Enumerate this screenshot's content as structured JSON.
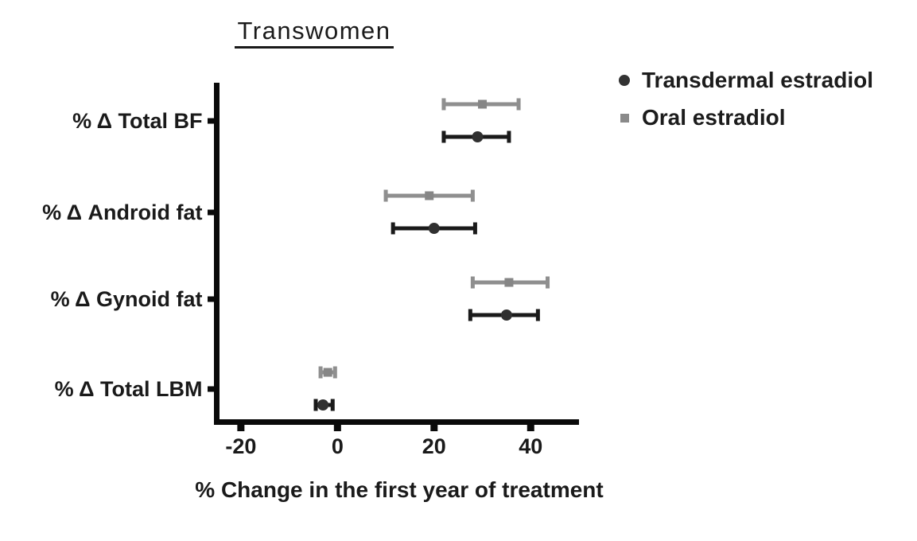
{
  "figure": {
    "title": "Transwomen",
    "background_color": "#ffffff",
    "text_color": "#1a1a1a"
  },
  "legend": {
    "items": [
      {
        "label": "Transdermal estradiol",
        "marker": "circle",
        "color": "#333333"
      },
      {
        "label": "Oral estradiol",
        "marker": "square",
        "color": "#8a8a8a"
      }
    ]
  },
  "chart_data": {
    "type": "scatter",
    "subtype": "horizontal point estimates with error bars (forest-style)",
    "title": "Transwomen",
    "xlabel": "% Change in the first year of treatment",
    "xlim": [
      -25,
      50
    ],
    "xticks": [
      -20,
      0,
      20,
      40
    ],
    "grid": false,
    "legend_position": "top-right",
    "axis_color": "#0a0a0a",
    "categories": [
      "% Δ Total BF",
      "% Δ Android fat",
      "% Δ Gynoid fat",
      "% Δ Total LBM"
    ],
    "series": [
      {
        "name": "Oral estradiol",
        "marker": "square",
        "marker_color": "#868686",
        "line_color": "#8f8f8f",
        "values": [
          30,
          19,
          35.5,
          -2
        ],
        "ci_low": [
          22,
          10,
          28,
          -3.5
        ],
        "ci_high": [
          37.5,
          28,
          43.5,
          -0.5
        ]
      },
      {
        "name": "Transdermal estradiol",
        "marker": "circle",
        "marker_color": "#303030",
        "line_color": "#1a1a1a",
        "values": [
          29,
          20,
          35,
          -3
        ],
        "ci_low": [
          22,
          11.5,
          27.5,
          -4.5
        ],
        "ci_high": [
          35.5,
          28.5,
          41.5,
          -1
        ]
      }
    ]
  }
}
